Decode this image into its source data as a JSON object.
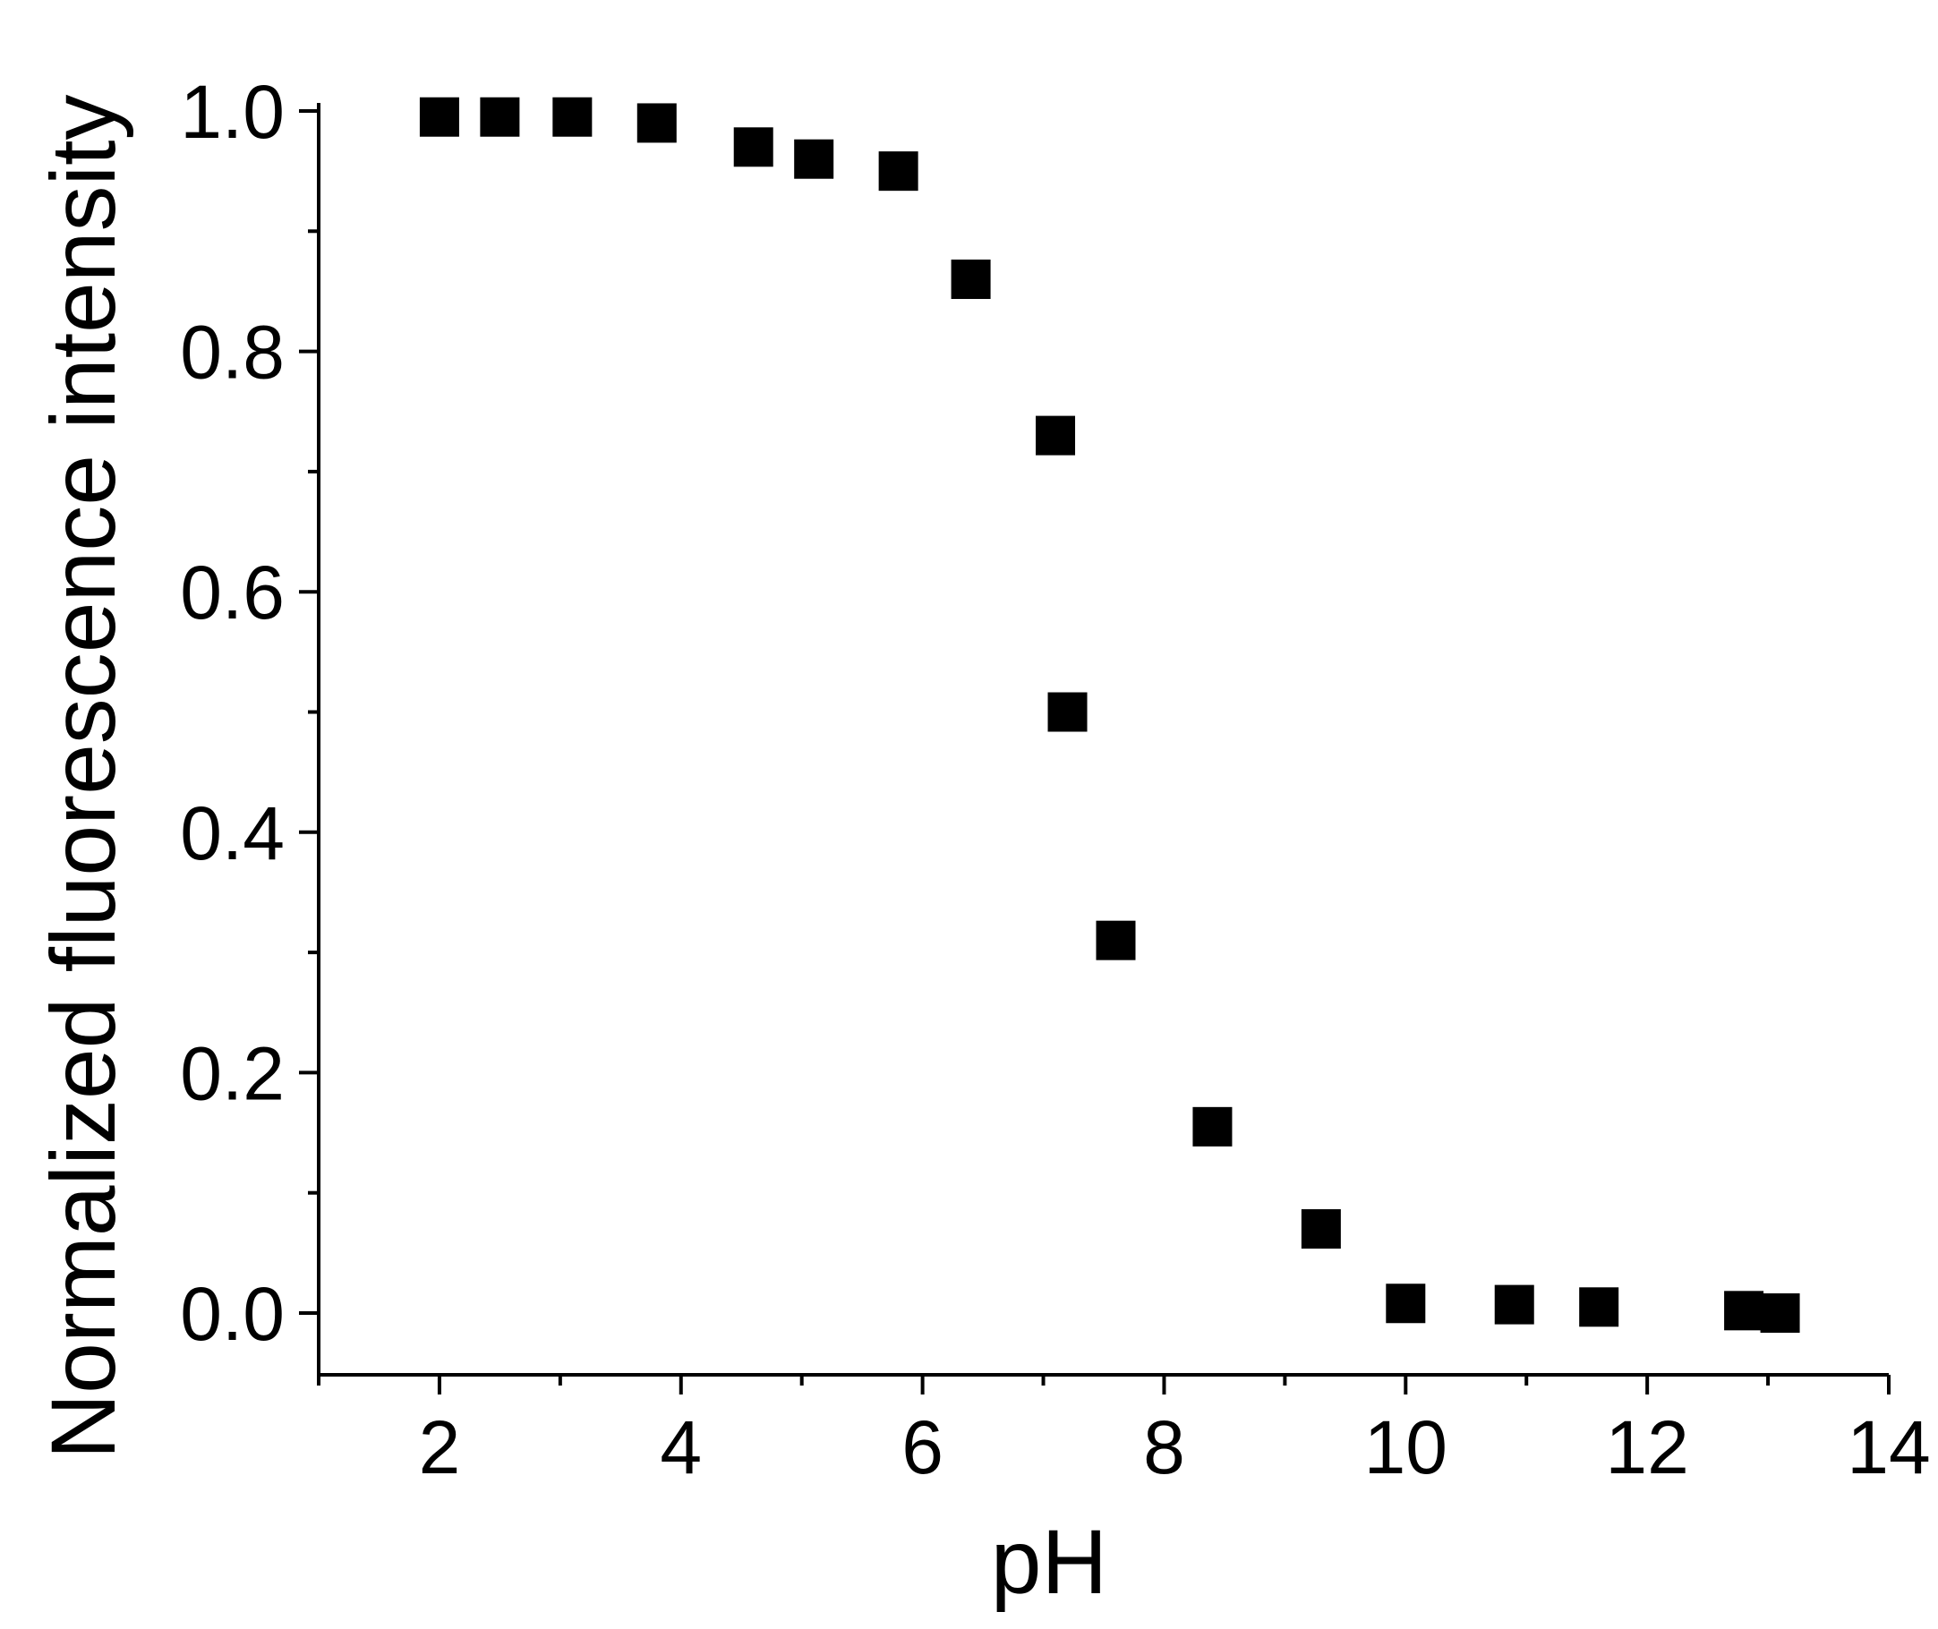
{
  "chart_data": {
    "type": "scatter",
    "title": "",
    "xlabel": "pH",
    "ylabel": "Normalized fluorescence intensity",
    "xlim": [
      1,
      14
    ],
    "ylim": [
      -0.1,
      1.0
    ],
    "x_ticks": [
      2,
      4,
      6,
      8,
      10,
      12,
      14
    ],
    "x_tick_labels": [
      "2",
      "4",
      "6",
      "8",
      "10",
      "12",
      "14"
    ],
    "x_minor_ticks": [
      1,
      3,
      5,
      7,
      9,
      11,
      13
    ],
    "y_ticks": [
      0.0,
      0.2,
      0.4,
      0.6,
      0.8,
      1.0
    ],
    "y_tick_labels": [
      "0.0",
      "0.2",
      "0.4",
      "0.6",
      "0.8",
      "1.0"
    ],
    "y_minor_ticks": [
      0.1,
      0.3,
      0.5,
      0.7,
      0.9
    ],
    "grid": false,
    "marker": "square",
    "color": "#000000",
    "series": [
      {
        "x": [
          2.0,
          2.5,
          3.1,
          3.8,
          4.6,
          5.1,
          5.8,
          6.4,
          7.1,
          7.2,
          7.6,
          8.4,
          9.3,
          10.0,
          10.9,
          11.6,
          12.8,
          13.1
        ],
        "y": [
          0.995,
          0.995,
          0.995,
          0.99,
          0.97,
          0.96,
          0.95,
          0.86,
          0.73,
          0.5,
          0.31,
          0.155,
          0.07,
          0.008,
          0.007,
          0.005,
          0.002,
          0.0
        ]
      }
    ]
  }
}
